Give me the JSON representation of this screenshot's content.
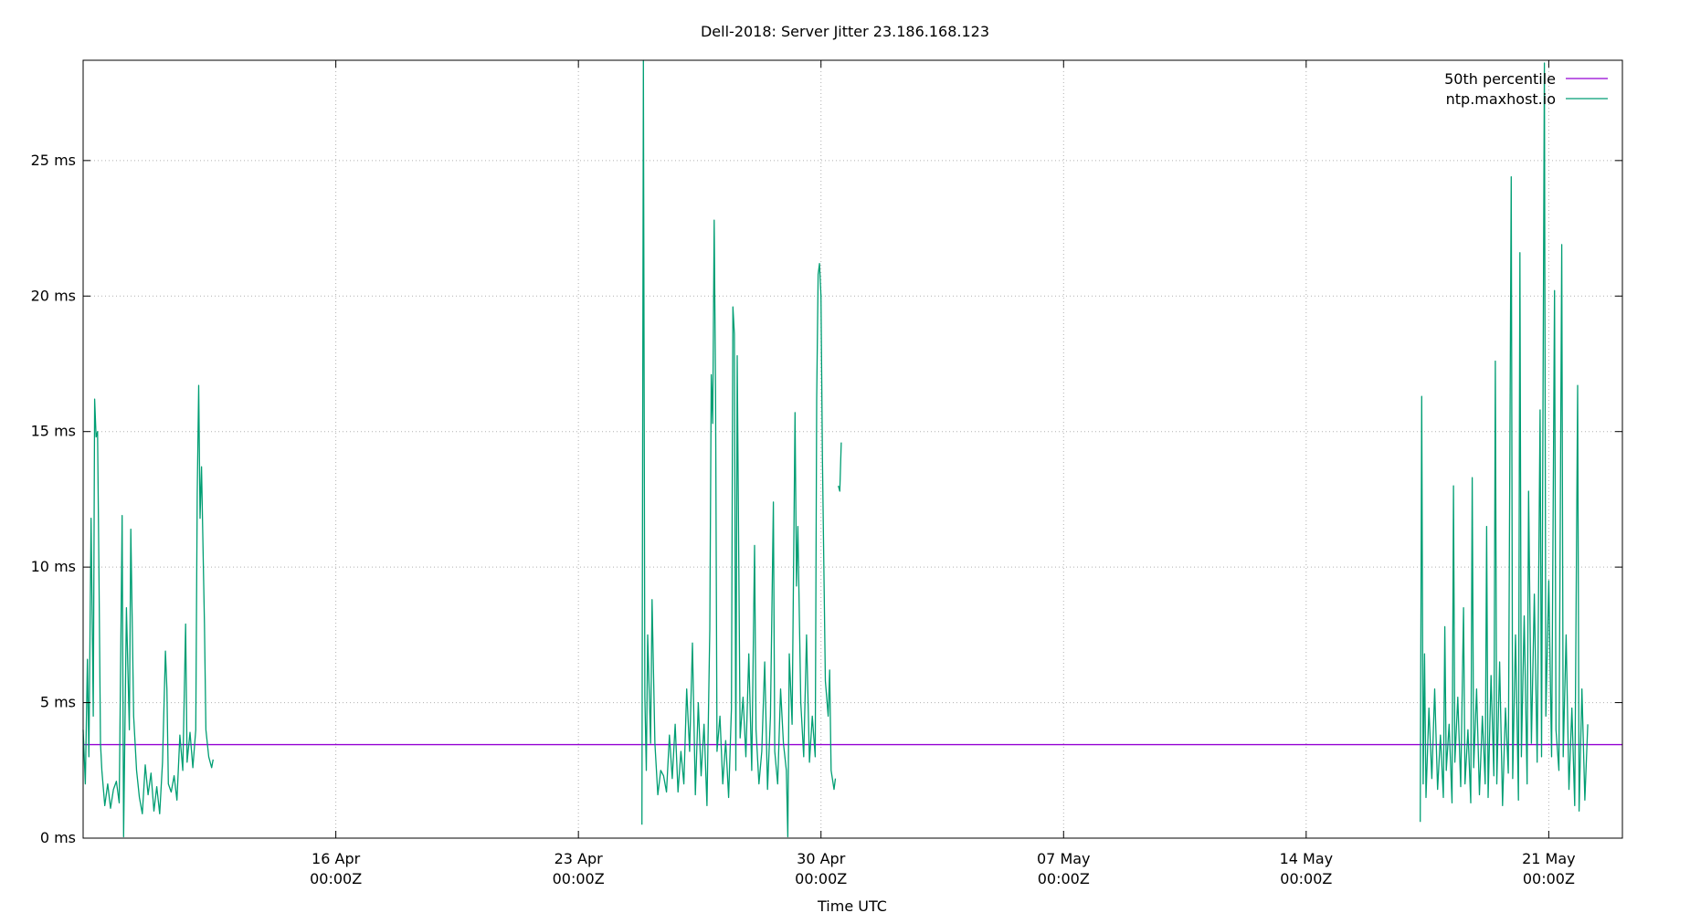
{
  "chart_data": {
    "type": "line",
    "title": "Dell-2018: Server Jitter 23.186.168.123",
    "xlabel": "Time UTC",
    "ylabel": "",
    "xlim": [
      "2018-04-08T17:00:00Z",
      "2018-05-23T03:00:00Z"
    ],
    "ylim": [
      0,
      28.7
    ],
    "grid": true,
    "legend_position": "top-right",
    "y_ticks": [
      {
        "value": 0,
        "label": "0 ms"
      },
      {
        "value": 5,
        "label": "5 ms"
      },
      {
        "value": 10,
        "label": "10 ms"
      },
      {
        "value": 15,
        "label": "15 ms"
      },
      {
        "value": 20,
        "label": "20 ms"
      },
      {
        "value": 25,
        "label": "25 ms"
      }
    ],
    "x_ticks": [
      {
        "value": "2018-04-16T00:00:00Z",
        "label_date": "16 Apr",
        "label_time": "00:00Z"
      },
      {
        "value": "2018-04-23T00:00:00Z",
        "label_date": "23 Apr",
        "label_time": "00:00Z"
      },
      {
        "value": "2018-04-30T00:00:00Z",
        "label_date": "30 Apr",
        "label_time": "00:00Z"
      },
      {
        "value": "2018-05-07T00:00:00Z",
        "label_date": "07 May",
        "label_time": "00:00Z"
      },
      {
        "value": "2018-05-14T00:00:00Z",
        "label_date": "14 May",
        "label_time": "00:00Z"
      },
      {
        "value": "2018-05-21T00:00:00Z",
        "label_date": "21 May",
        "label_time": "00:00Z"
      }
    ],
    "series": [
      {
        "name": "50th percentile",
        "color": "#9400d3",
        "kind": "hline",
        "value": 3.45
      },
      {
        "name": "ntp.maxhost.io",
        "color": "#009e73",
        "kind": "line",
        "segments": [
          [
            [
              "2018-04-08T17:00:00Z",
              4.0
            ],
            [
              "2018-04-08T18:30:00Z",
              2.0
            ],
            [
              "2018-04-08T20:00:00Z",
              6.6
            ],
            [
              "2018-04-08T21:00:00Z",
              3.0
            ],
            [
              "2018-04-08T22:30:00Z",
              11.8
            ],
            [
              "2018-04-09T00:00:00Z",
              4.5
            ],
            [
              "2018-04-09T01:00:00Z",
              16.2
            ],
            [
              "2018-04-09T02:00:00Z",
              14.8
            ],
            [
              "2018-04-09T03:00:00Z",
              15.0
            ],
            [
              "2018-04-09T04:00:00Z",
              9.5
            ],
            [
              "2018-04-09T05:00:00Z",
              3.5
            ],
            [
              "2018-04-09T06:00:00Z",
              2.5
            ],
            [
              "2018-04-09T08:00:00Z",
              1.2
            ],
            [
              "2018-04-09T10:00:00Z",
              2.0
            ],
            [
              "2018-04-09T12:00:00Z",
              1.1
            ],
            [
              "2018-04-09T14:00:00Z",
              1.8
            ],
            [
              "2018-04-09T16:00:00Z",
              2.1
            ],
            [
              "2018-04-09T18:00:00Z",
              1.3
            ],
            [
              "2018-04-09T20:00:00Z",
              11.9
            ],
            [
              "2018-04-09T21:00:00Z",
              0.05
            ],
            [
              "2018-04-09T23:00:00Z",
              8.5
            ],
            [
              "2018-04-10T01:00:00Z",
              4.0
            ],
            [
              "2018-04-10T02:00:00Z",
              11.4
            ],
            [
              "2018-04-10T04:00:00Z",
              4.5
            ],
            [
              "2018-04-10T06:00:00Z",
              2.5
            ],
            [
              "2018-04-10T08:00:00Z",
              1.5
            ],
            [
              "2018-04-10T10:00:00Z",
              0.9
            ],
            [
              "2018-04-10T12:00:00Z",
              2.7
            ],
            [
              "2018-04-10T14:00:00Z",
              1.6
            ],
            [
              "2018-04-10T16:00:00Z",
              2.4
            ],
            [
              "2018-04-10T18:00:00Z",
              1.0
            ],
            [
              "2018-04-10T20:00:00Z",
              1.9
            ],
            [
              "2018-04-10T22:00:00Z",
              0.9
            ],
            [
              "2018-04-11T00:00:00Z",
              2.8
            ],
            [
              "2018-04-11T02:00:00Z",
              6.9
            ],
            [
              "2018-04-11T03:00:00Z",
              5.5
            ],
            [
              "2018-04-11T04:00:00Z",
              2.0
            ],
            [
              "2018-04-11T06:00:00Z",
              1.7
            ],
            [
              "2018-04-11T08:00:00Z",
              2.3
            ],
            [
              "2018-04-11T10:00:00Z",
              1.4
            ],
            [
              "2018-04-11T12:00:00Z",
              3.8
            ],
            [
              "2018-04-11T14:00:00Z",
              2.5
            ],
            [
              "2018-04-11T16:00:00Z",
              7.9
            ],
            [
              "2018-04-11T17:00:00Z",
              2.8
            ],
            [
              "2018-04-11T19:00:00Z",
              3.9
            ],
            [
              "2018-04-11T21:00:00Z",
              2.6
            ],
            [
              "2018-04-11T23:00:00Z",
              4.0
            ],
            [
              "2018-04-12T00:00:00Z",
              12.7
            ],
            [
              "2018-04-12T01:00:00Z",
              16.7
            ],
            [
              "2018-04-12T02:00:00Z",
              11.8
            ],
            [
              "2018-04-12T03:00:00Z",
              13.7
            ],
            [
              "2018-04-12T05:00:00Z",
              7.9
            ],
            [
              "2018-04-12T06:00:00Z",
              4.0
            ],
            [
              "2018-04-12T08:00:00Z",
              3.0
            ],
            [
              "2018-04-12T10:00:00Z",
              2.6
            ],
            [
              "2018-04-12T11:00:00Z",
              2.9
            ]
          ],
          [
            [
              "2018-04-24T20:00:00Z",
              0.5
            ],
            [
              "2018-04-24T21:00:00Z",
              28.7
            ],
            [
              "2018-04-24T22:00:00Z",
              5.2
            ],
            [
              "2018-04-24T23:00:00Z",
              2.5
            ],
            [
              "2018-04-25T00:00:00Z",
              7.5
            ],
            [
              "2018-04-25T02:00:00Z",
              3.5
            ],
            [
              "2018-04-25T03:00:00Z",
              8.8
            ],
            [
              "2018-04-25T05:00:00Z",
              3.5
            ],
            [
              "2018-04-25T07:00:00Z",
              1.6
            ],
            [
              "2018-04-25T09:00:00Z",
              2.5
            ],
            [
              "2018-04-25T11:00:00Z",
              2.3
            ],
            [
              "2018-04-25T13:00:00Z",
              1.7
            ],
            [
              "2018-04-25T15:00:00Z",
              3.8
            ],
            [
              "2018-04-25T17:00:00Z",
              2.2
            ],
            [
              "2018-04-25T19:00:00Z",
              4.2
            ],
            [
              "2018-04-25T21:00:00Z",
              1.7
            ],
            [
              "2018-04-25T23:00:00Z",
              3.2
            ],
            [
              "2018-04-26T01:00:00Z",
              2.0
            ],
            [
              "2018-04-26T03:00:00Z",
              5.5
            ],
            [
              "2018-04-26T05:00:00Z",
              3.2
            ],
            [
              "2018-04-26T07:00:00Z",
              7.2
            ],
            [
              "2018-04-26T09:00:00Z",
              1.6
            ],
            [
              "2018-04-26T11:00:00Z",
              5.0
            ],
            [
              "2018-04-26T13:00:00Z",
              2.3
            ],
            [
              "2018-04-26T15:00:00Z",
              4.2
            ],
            [
              "2018-04-26T17:00:00Z",
              1.2
            ],
            [
              "2018-04-26T19:00:00Z",
              7.7
            ],
            [
              "2018-04-26T20:00:00Z",
              17.1
            ],
            [
              "2018-04-26T21:00:00Z",
              15.3
            ],
            [
              "2018-04-26T22:00:00Z",
              22.8
            ],
            [
              "2018-04-26T23:00:00Z",
              16.5
            ],
            [
              "2018-04-27T00:00:00Z",
              3.2
            ],
            [
              "2018-04-27T02:00:00Z",
              4.5
            ],
            [
              "2018-04-27T04:00:00Z",
              2.0
            ],
            [
              "2018-04-27T06:00:00Z",
              3.6
            ],
            [
              "2018-04-27T08:00:00Z",
              1.5
            ],
            [
              "2018-04-27T10:00:00Z",
              4.8
            ],
            [
              "2018-04-27T11:00:00Z",
              19.6
            ],
            [
              "2018-04-27T12:00:00Z",
              18.6
            ],
            [
              "2018-04-27T13:00:00Z",
              2.5
            ],
            [
              "2018-04-27T14:00:00Z",
              17.8
            ],
            [
              "2018-04-27T16:00:00Z",
              3.7
            ],
            [
              "2018-04-27T18:00:00Z",
              5.2
            ],
            [
              "2018-04-27T20:00:00Z",
              3.0
            ],
            [
              "2018-04-27T22:00:00Z",
              6.8
            ],
            [
              "2018-04-28T00:00:00Z",
              2.5
            ],
            [
              "2018-04-28T02:00:00Z",
              10.8
            ],
            [
              "2018-04-28T03:00:00Z",
              4.0
            ],
            [
              "2018-04-28T05:00:00Z",
              2.0
            ],
            [
              "2018-04-28T07:00:00Z",
              3.2
            ],
            [
              "2018-04-28T09:00:00Z",
              6.5
            ],
            [
              "2018-04-28T11:00:00Z",
              1.8
            ],
            [
              "2018-04-28T13:00:00Z",
              4.5
            ],
            [
              "2018-04-28T15:00:00Z",
              12.4
            ],
            [
              "2018-04-28T16:00:00Z",
              3.2
            ],
            [
              "2018-04-28T18:00:00Z",
              2.0
            ],
            [
              "2018-04-28T20:00:00Z",
              5.5
            ],
            [
              "2018-04-28T22:00:00Z",
              3.5
            ],
            [
              "2018-04-29T00:00:00Z",
              2.5
            ],
            [
              "2018-04-29T01:00:00Z",
              0.05
            ],
            [
              "2018-04-29T02:00:00Z",
              6.8
            ],
            [
              "2018-04-29T04:00:00Z",
              4.2
            ],
            [
              "2018-04-29T06:00:00Z",
              15.7
            ],
            [
              "2018-04-29T07:00:00Z",
              9.3
            ],
            [
              "2018-04-29T08:00:00Z",
              11.5
            ],
            [
              "2018-04-29T10:00:00Z",
              5.0
            ],
            [
              "2018-04-29T12:00:00Z",
              3.0
            ],
            [
              "2018-04-29T14:00:00Z",
              7.5
            ],
            [
              "2018-04-29T16:00:00Z",
              2.8
            ],
            [
              "2018-04-29T18:00:00Z",
              4.5
            ],
            [
              "2018-04-29T20:00:00Z",
              3.0
            ],
            [
              "2018-04-29T21:00:00Z",
              16.2
            ],
            [
              "2018-04-29T22:00:00Z",
              20.8
            ],
            [
              "2018-04-29T23:00:00Z",
              21.2
            ],
            [
              "2018-04-30T00:00:00Z",
              20.0
            ],
            [
              "2018-04-30T01:00:00Z",
              14.0
            ],
            [
              "2018-04-30T03:00:00Z",
              5.8
            ],
            [
              "2018-04-30T05:00:00Z",
              4.5
            ],
            [
              "2018-04-30T06:00:00Z",
              6.2
            ],
            [
              "2018-04-30T07:00:00Z",
              2.5
            ],
            [
              "2018-04-30T09:00:00Z",
              1.8
            ],
            [
              "2018-04-30T10:00:00Z",
              2.2
            ]
          ],
          [
            [
              "2018-04-30T12:00:00Z",
              13.0
            ],
            [
              "2018-04-30T13:00:00Z",
              12.8
            ],
            [
              "2018-04-30T14:00:00Z",
              14.6
            ]
          ],
          [
            [
              "2018-05-17T07:00:00Z",
              0.6
            ],
            [
              "2018-05-17T08:00:00Z",
              16.3
            ],
            [
              "2018-05-17T09:00:00Z",
              2.0
            ],
            [
              "2018-05-17T10:00:00Z",
              6.8
            ],
            [
              "2018-05-17T11:00:00Z",
              1.5
            ],
            [
              "2018-05-17T13:00:00Z",
              4.8
            ],
            [
              "2018-05-17T15:00:00Z",
              2.2
            ],
            [
              "2018-05-17T17:00:00Z",
              5.5
            ],
            [
              "2018-05-17T19:00:00Z",
              1.8
            ],
            [
              "2018-05-17T21:00:00Z",
              3.8
            ],
            [
              "2018-05-17T23:00:00Z",
              1.5
            ],
            [
              "2018-05-18T00:00:00Z",
              7.8
            ],
            [
              "2018-05-18T01:00:00Z",
              2.5
            ],
            [
              "2018-05-18T03:00:00Z",
              4.2
            ],
            [
              "2018-05-18T05:00:00Z",
              1.3
            ],
            [
              "2018-05-18T06:00:00Z",
              13.0
            ],
            [
              "2018-05-18T07:00:00Z",
              2.8
            ],
            [
              "2018-05-18T09:00:00Z",
              5.2
            ],
            [
              "2018-05-18T11:00:00Z",
              1.9
            ],
            [
              "2018-05-18T13:00:00Z",
              8.5
            ],
            [
              "2018-05-18T14:00:00Z",
              2.0
            ],
            [
              "2018-05-18T16:00:00Z",
              4.0
            ],
            [
              "2018-05-18T18:00:00Z",
              1.3
            ],
            [
              "2018-05-18T19:00:00Z",
              13.3
            ],
            [
              "2018-05-18T20:00:00Z",
              2.6
            ],
            [
              "2018-05-18T22:00:00Z",
              5.5
            ],
            [
              "2018-05-19T00:00:00Z",
              1.6
            ],
            [
              "2018-05-19T02:00:00Z",
              4.5
            ],
            [
              "2018-05-19T04:00:00Z",
              2.0
            ],
            [
              "2018-05-19T05:00:00Z",
              11.5
            ],
            [
              "2018-05-19T06:00:00Z",
              1.5
            ],
            [
              "2018-05-19T08:00:00Z",
              6.0
            ],
            [
              "2018-05-19T10:00:00Z",
              2.3
            ],
            [
              "2018-05-19T11:00:00Z",
              17.6
            ],
            [
              "2018-05-19T12:00:00Z",
              2.0
            ],
            [
              "2018-05-19T14:00:00Z",
              6.5
            ],
            [
              "2018-05-19T16:00:00Z",
              1.2
            ],
            [
              "2018-05-19T18:00:00Z",
              4.8
            ],
            [
              "2018-05-19T20:00:00Z",
              2.4
            ],
            [
              "2018-05-19T22:00:00Z",
              24.4
            ],
            [
              "2018-05-19T23:00:00Z",
              2.2
            ],
            [
              "2018-05-20T01:00:00Z",
              7.5
            ],
            [
              "2018-05-20T03:00:00Z",
              1.4
            ],
            [
              "2018-05-20T04:00:00Z",
              21.6
            ],
            [
              "2018-05-20T05:00:00Z",
              3.0
            ],
            [
              "2018-05-20T07:00:00Z",
              8.2
            ],
            [
              "2018-05-20T09:00:00Z",
              2.0
            ],
            [
              "2018-05-20T10:00:00Z",
              12.8
            ],
            [
              "2018-05-20T12:00:00Z",
              3.5
            ],
            [
              "2018-05-20T14:00:00Z",
              9.0
            ],
            [
              "2018-05-20T16:00:00Z",
              2.8
            ],
            [
              "2018-05-20T18:00:00Z",
              15.8
            ],
            [
              "2018-05-20T19:00:00Z",
              3.0
            ],
            [
              "2018-05-20T21:00:00Z",
              28.6
            ],
            [
              "2018-05-20T22:00:00Z",
              4.5
            ],
            [
              "2018-05-21T00:00:00Z",
              9.5
            ],
            [
              "2018-05-21T02:00:00Z",
              3.0
            ],
            [
              "2018-05-21T04:00:00Z",
              20.2
            ],
            [
              "2018-05-21T05:00:00Z",
              4.0
            ],
            [
              "2018-05-21T07:00:00Z",
              2.5
            ],
            [
              "2018-05-21T09:00:00Z",
              21.9
            ],
            [
              "2018-05-21T10:00:00Z",
              3.0
            ],
            [
              "2018-05-21T12:00:00Z",
              7.5
            ],
            [
              "2018-05-21T14:00:00Z",
              1.8
            ],
            [
              "2018-05-21T16:00:00Z",
              4.8
            ],
            [
              "2018-05-21T18:00:00Z",
              1.2
            ],
            [
              "2018-05-21T20:00:00Z",
              16.7
            ],
            [
              "2018-05-21T21:00:00Z",
              1.0
            ],
            [
              "2018-05-21T23:00:00Z",
              5.5
            ],
            [
              "2018-05-22T01:00:00Z",
              1.4
            ],
            [
              "2018-05-22T03:00:00Z",
              4.2
            ]
          ]
        ]
      }
    ]
  }
}
